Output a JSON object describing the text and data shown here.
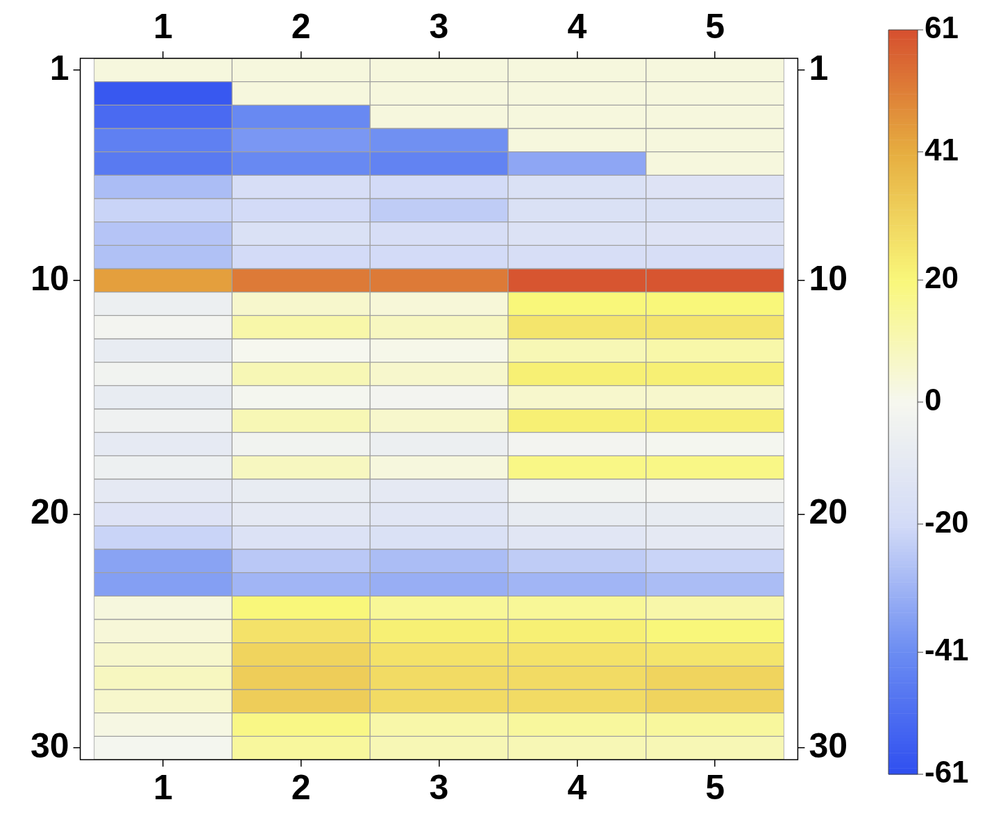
{
  "chart_data": {
    "type": "heatmap",
    "categories": [
      "1",
      "2",
      "3",
      "4",
      "5"
    ],
    "y_categories": [
      "1",
      null,
      null,
      null,
      null,
      null,
      null,
      null,
      null,
      "10",
      null,
      null,
      null,
      null,
      null,
      null,
      null,
      null,
      null,
      "20",
      null,
      null,
      null,
      null,
      null,
      null,
      null,
      null,
      null,
      "30"
    ],
    "y2_categories": [
      "1",
      null,
      null,
      null,
      null,
      null,
      null,
      null,
      null,
      "10",
      null,
      null,
      null,
      null,
      null,
      null,
      null,
      null,
      null,
      "20",
      null,
      null,
      null,
      null,
      null,
      null,
      null,
      null,
      null,
      "30"
    ],
    "cells": [
      [
        3,
        3,
        3,
        3,
        3
      ],
      [
        -58,
        3,
        3,
        3,
        3
      ],
      [
        -52,
        -42,
        3,
        3,
        3
      ],
      [
        -45,
        -38,
        -40,
        3,
        3
      ],
      [
        -47,
        -42,
        -44,
        -34,
        3
      ],
      [
        -28,
        -18,
        -20,
        -16,
        -14
      ],
      [
        -22,
        -20,
        -24,
        -16,
        -16
      ],
      [
        -26,
        -16,
        -18,
        -15,
        -14
      ],
      [
        -27,
        -20,
        -20,
        -18,
        -18
      ],
      [
        44,
        52,
        52,
        60,
        60
      ],
      [
        -6,
        6,
        4,
        20,
        20
      ],
      [
        -2,
        12,
        8,
        25,
        25
      ],
      [
        -8,
        0,
        1,
        10,
        12
      ],
      [
        -3,
        10,
        6,
        22,
        22
      ],
      [
        -8,
        -1,
        -2,
        6,
        6
      ],
      [
        -4,
        10,
        6,
        22,
        22
      ],
      [
        -9,
        -3,
        -6,
        -2,
        -1
      ],
      [
        -5,
        8,
        3,
        18,
        18
      ],
      [
        -10,
        -8,
        -10,
        -3,
        -2
      ],
      [
        -14,
        -10,
        -12,
        -8,
        -8
      ],
      [
        -22,
        -15,
        -16,
        -12,
        -10
      ],
      [
        -35,
        -25,
        -28,
        -24,
        -22
      ],
      [
        -36,
        -30,
        -32,
        -30,
        -28
      ],
      [
        3,
        20,
        15,
        15,
        12
      ],
      [
        4,
        26,
        22,
        22,
        20
      ],
      [
        6,
        30,
        26,
        26,
        25
      ],
      [
        8,
        32,
        28,
        28,
        30
      ],
      [
        6,
        32,
        28,
        28,
        30
      ],
      [
        2,
        18,
        12,
        14,
        14
      ],
      [
        -1,
        14,
        10,
        10,
        10
      ]
    ],
    "clim": [
      -61,
      61
    ],
    "cticks": [
      -61,
      -41,
      -20,
      0,
      20,
      41,
      61
    ]
  }
}
